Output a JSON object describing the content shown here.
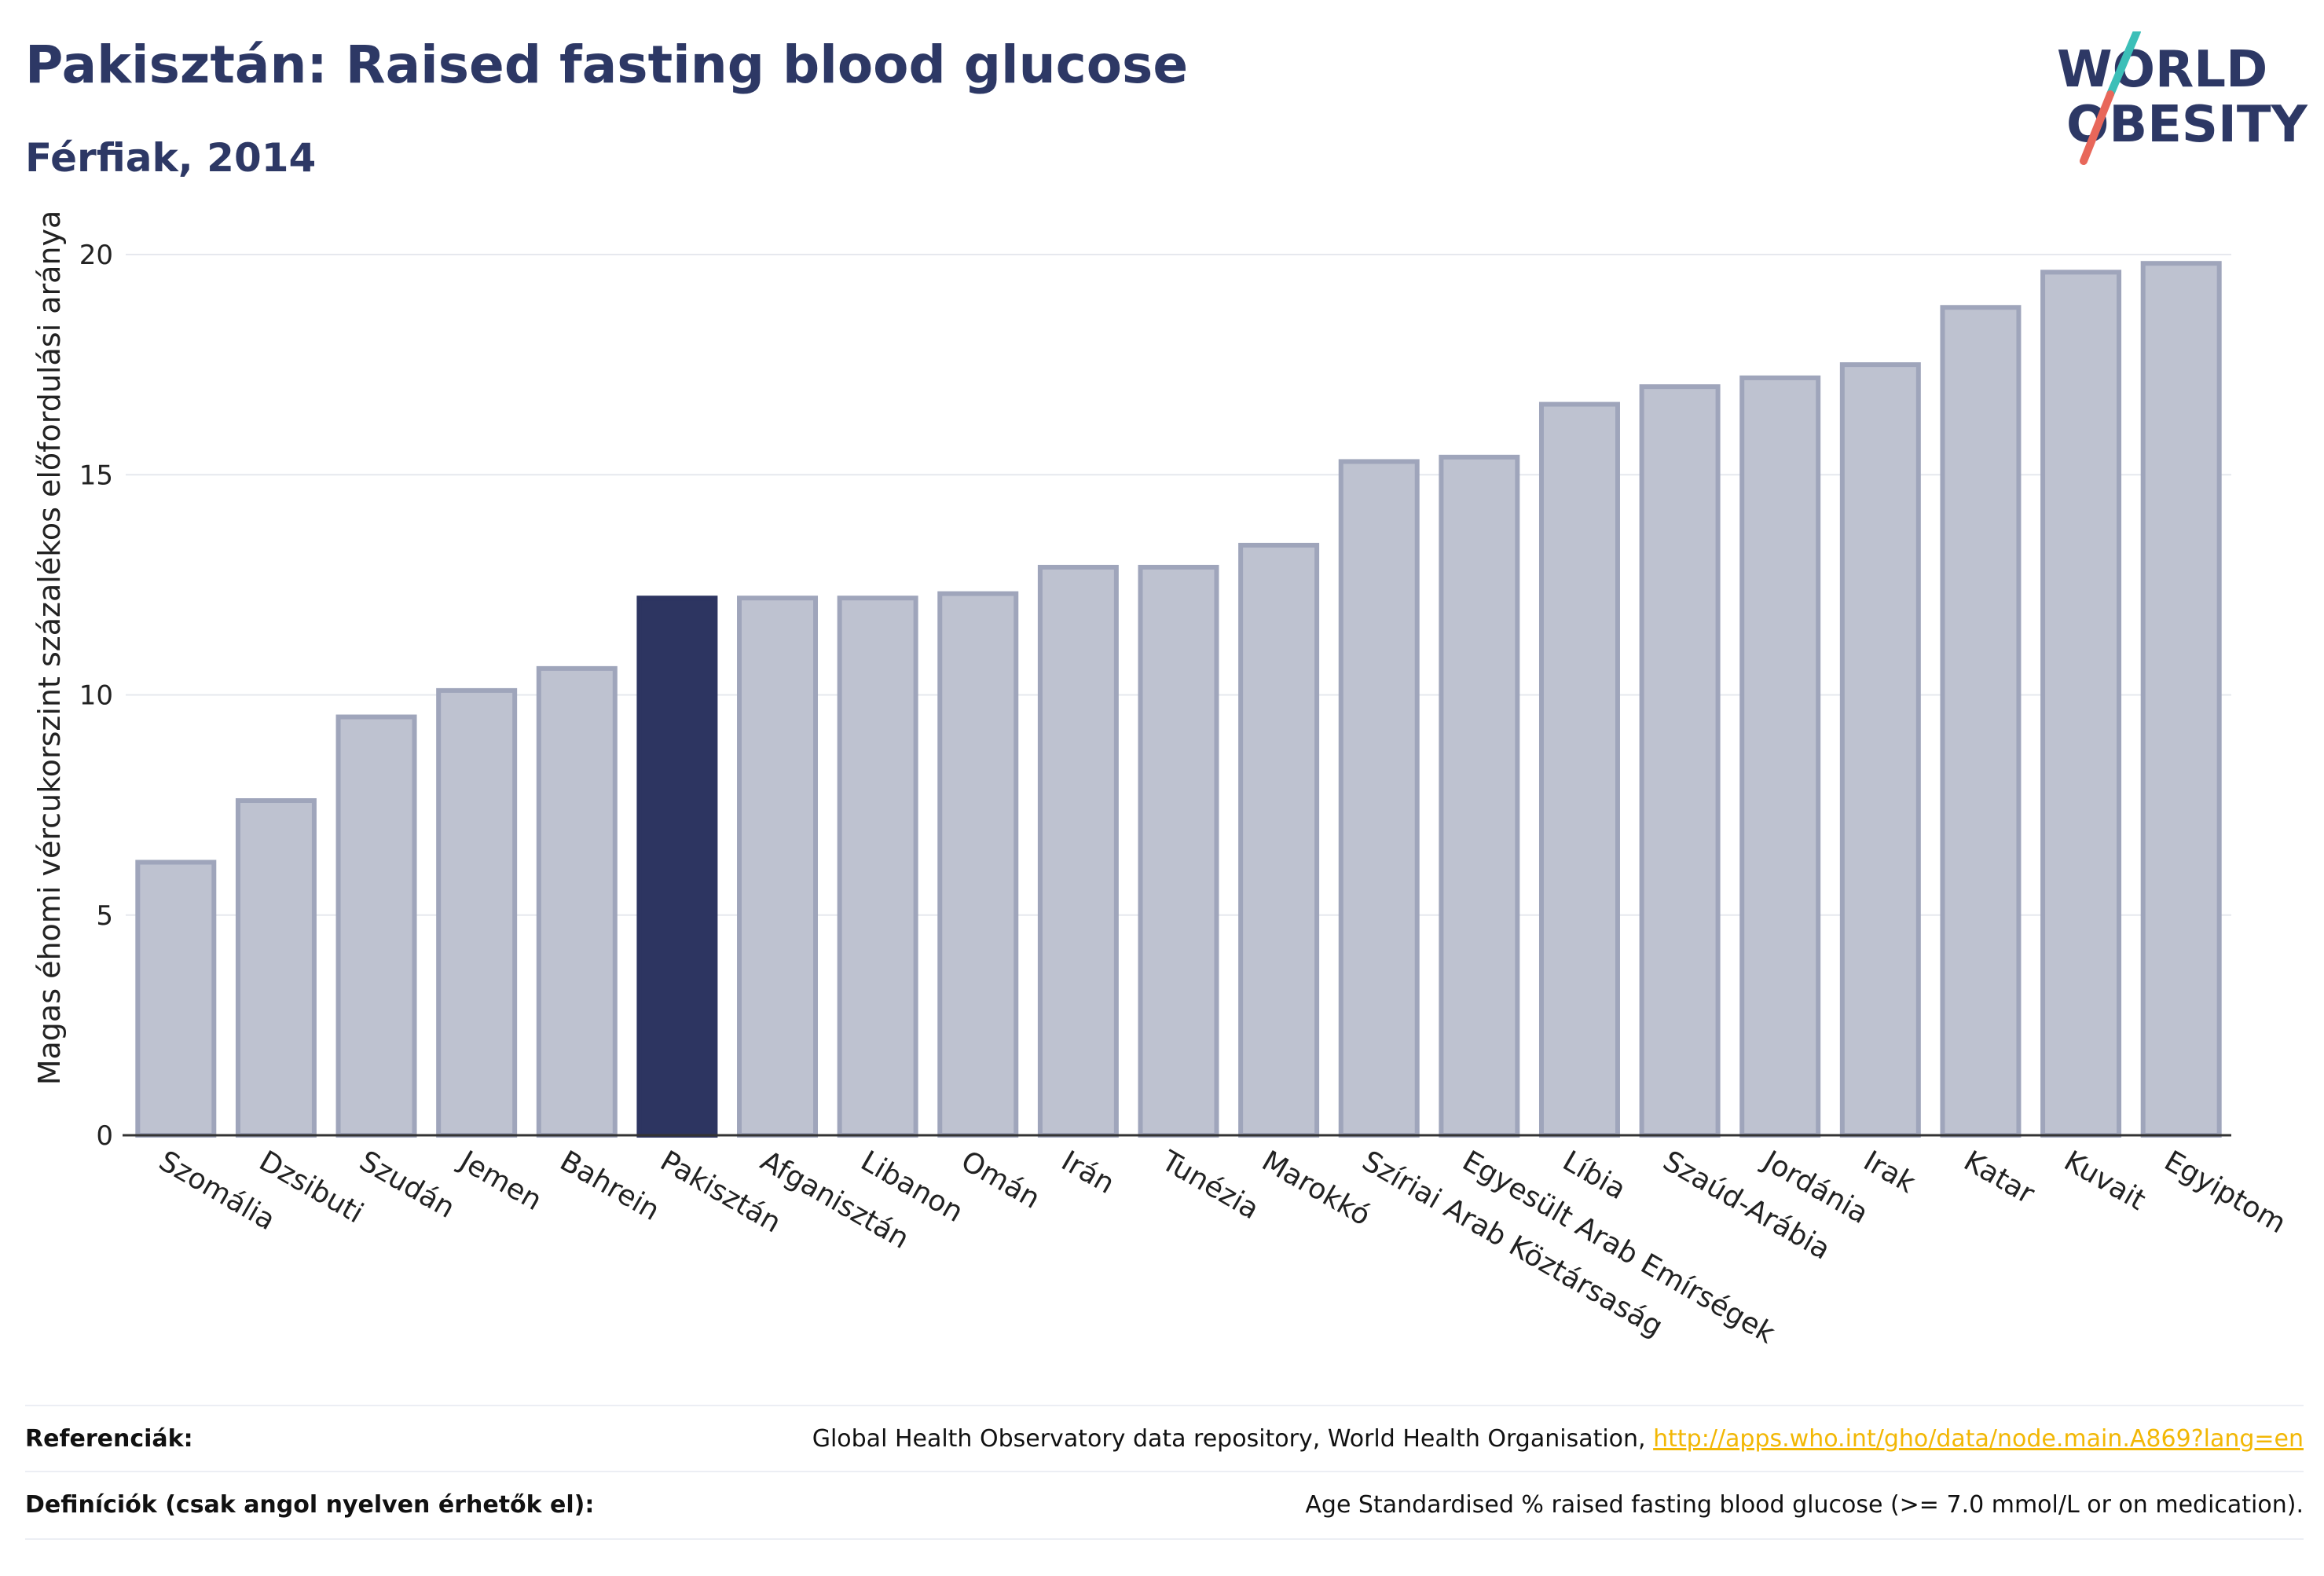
{
  "header": {
    "title": "Pakisztán: Raised fasting blood glucose",
    "subtitle": "Férfiak, 2014"
  },
  "logo": {
    "line1": "WORLD",
    "line2": "OBESITY",
    "slash_colors": [
      "#3cbfb8",
      "#e8675a"
    ],
    "text_color": "#2d3865"
  },
  "colors": {
    "bar": "#bec2d0",
    "bar_edge": "#9fa5bb",
    "highlight": "#2d3561",
    "grid": "#e6e8ee",
    "axis": "#333333"
  },
  "chart_data": {
    "type": "bar",
    "title": "Pakisztán: Raised fasting blood glucose",
    "subtitle": "Férfiak, 2014",
    "xlabel": "",
    "ylabel": "Magas éhomi vércukorszint százalékos előfordulási aránya",
    "ylim": [
      0,
      20
    ],
    "yticks": [
      0,
      5,
      10,
      15,
      20
    ],
    "grid": true,
    "highlight": "Pakisztán",
    "categories": [
      "Szomália",
      "Dzsibuti",
      "Szudán",
      "Jemen",
      "Bahrein",
      "Pakisztán",
      "Afganisztán",
      "Libanon",
      "Omán",
      "Irán",
      "Tunézia",
      "Marokkó",
      "Szíriai Arab Köztársaság",
      "Egyesült Arab Emírségek",
      "Líbia",
      "Szaúd-Arábia",
      "Jordánia",
      "Irak",
      "Katar",
      "Kuvait",
      "Egyiptom"
    ],
    "values": [
      6.2,
      7.6,
      9.5,
      10.1,
      10.6,
      12.2,
      12.2,
      12.2,
      12.3,
      12.9,
      12.9,
      13.4,
      15.3,
      15.4,
      16.6,
      17.0,
      17.2,
      17.5,
      18.8,
      19.6,
      19.8
    ]
  },
  "footer": {
    "ref_label": "Referenciák:",
    "ref_text": "Global Health Observatory data repository, World Health Organisation,",
    "ref_link": "http://apps.who.int/gho/data/node.main.A869?lang=en",
    "def_label": "Definíciók (csak angol nyelven érhetők el):",
    "def_text": "Age Standardised % raised fasting blood glucose (>= 7.0 mmol/L or on medication)."
  }
}
